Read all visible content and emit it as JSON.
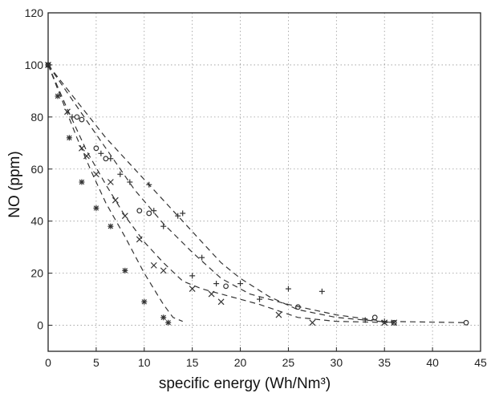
{
  "chart_data": {
    "type": "scatter",
    "title": "",
    "xlabel": "specific energy (Wh/Nm³)",
    "ylabel": "NO (ppm)",
    "xlim": [
      0,
      45
    ],
    "ylim": [
      -10,
      120
    ],
    "xticks": [
      "0",
      "5",
      "10",
      "15",
      "20",
      "25",
      "30",
      "35",
      "40",
      "45"
    ],
    "yticks": [
      "0",
      "20",
      "40",
      "60",
      "80",
      "100",
      "120"
    ],
    "grid": true,
    "legend": "none",
    "line_style": "dashed",
    "colors": {
      "ink": "#333333",
      "grid": "#9a9a9a",
      "frame": "#222222"
    },
    "series": [
      {
        "marker": "star",
        "points": [
          [
            0,
            100
          ],
          [
            1,
            88
          ],
          [
            2.2,
            72
          ],
          [
            3.5,
            55
          ],
          [
            5,
            45
          ],
          [
            6.5,
            38
          ],
          [
            8,
            21
          ],
          [
            10,
            9
          ],
          [
            12,
            3
          ],
          [
            12.5,
            1
          ]
        ],
        "fit": [
          [
            0,
            100
          ],
          [
            1.5,
            86
          ],
          [
            3,
            72
          ],
          [
            4.5,
            59
          ],
          [
            6,
            47
          ],
          [
            8,
            34
          ],
          [
            10,
            20
          ],
          [
            12,
            8
          ],
          [
            13,
            3
          ],
          [
            14,
            1.5
          ]
        ]
      },
      {
        "marker": "x",
        "points": [
          [
            0,
            100
          ],
          [
            2,
            82
          ],
          [
            3.5,
            68
          ],
          [
            4,
            65
          ],
          [
            5,
            58
          ],
          [
            6.5,
            55
          ],
          [
            7,
            48
          ],
          [
            8,
            42
          ],
          [
            9.5,
            33
          ],
          [
            11,
            23
          ],
          [
            12,
            21
          ],
          [
            15,
            14
          ],
          [
            17,
            12
          ],
          [
            18,
            9
          ],
          [
            24,
            4
          ],
          [
            27.5,
            1
          ],
          [
            35,
            1
          ],
          [
            36,
            1
          ]
        ],
        "fit": [
          [
            0,
            100
          ],
          [
            2,
            83
          ],
          [
            4,
            67
          ],
          [
            6,
            54
          ],
          [
            8,
            42
          ],
          [
            10,
            32
          ],
          [
            12,
            24
          ],
          [
            14,
            17
          ],
          [
            16,
            14
          ],
          [
            18,
            12
          ],
          [
            22,
            8
          ],
          [
            26,
            3
          ],
          [
            30,
            1.5
          ],
          [
            36,
            1
          ]
        ]
      },
      {
        "marker": "circle",
        "points": [
          [
            0,
            100
          ],
          [
            3,
            80
          ],
          [
            3.5,
            79
          ],
          [
            5,
            68
          ],
          [
            6,
            64
          ],
          [
            9.5,
            44
          ],
          [
            10.5,
            43
          ],
          [
            18.5,
            15
          ],
          [
            26,
            7
          ],
          [
            34,
            3
          ],
          [
            36,
            1
          ],
          [
            43.5,
            1
          ]
        ],
        "fit": [
          [
            0,
            100
          ],
          [
            3,
            84
          ],
          [
            6,
            68
          ],
          [
            9,
            52
          ],
          [
            12,
            39
          ],
          [
            15,
            28
          ],
          [
            18,
            18
          ],
          [
            21,
            12
          ],
          [
            25,
            8
          ],
          [
            30,
            4
          ],
          [
            35,
            1.5
          ],
          [
            43.5,
            1
          ]
        ]
      },
      {
        "marker": "plus",
        "points": [
          [
            0,
            100
          ],
          [
            2.5,
            80
          ],
          [
            5.5,
            66
          ],
          [
            6.5,
            64
          ],
          [
            7.5,
            58
          ],
          [
            8.5,
            55
          ],
          [
            10.5,
            54
          ],
          [
            11,
            44
          ],
          [
            12,
            38
          ],
          [
            13.5,
            42
          ],
          [
            14,
            43
          ],
          [
            15,
            19
          ],
          [
            16,
            26
          ],
          [
            17.5,
            16
          ],
          [
            20,
            16
          ],
          [
            22,
            10
          ],
          [
            25,
            14
          ],
          [
            28.5,
            13
          ],
          [
            33,
            2
          ],
          [
            35,
            1.5
          ]
        ],
        "fit": [
          [
            0,
            100
          ],
          [
            3,
            86
          ],
          [
            6,
            72
          ],
          [
            9,
            60
          ],
          [
            12,
            48
          ],
          [
            14,
            40
          ],
          [
            16,
            32
          ],
          [
            18,
            24
          ],
          [
            20,
            18
          ],
          [
            23,
            11
          ],
          [
            26,
            6
          ],
          [
            30,
            3
          ],
          [
            36,
            1
          ]
        ]
      }
    ]
  }
}
